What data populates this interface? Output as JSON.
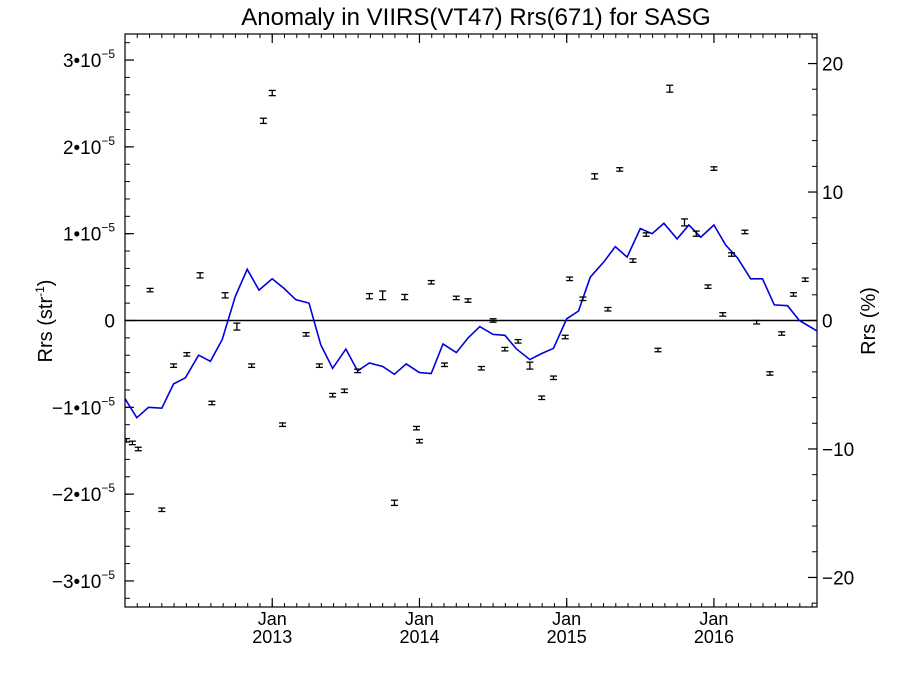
{
  "chart_data": {
    "type": "scatter",
    "title": "Anomaly in VIIRS(VT47) Rrs(671) for SASG",
    "ylabel_left": {
      "base": "Rrs (str",
      "sup": "-1",
      "close": ")"
    },
    "ylabel_right": "Rrs (%)",
    "xlim": [
      2012.0,
      2016.7
    ],
    "ylim_left": [
      -3.3e-05,
      3.3e-05
    ],
    "ylim_right": [
      -22.3,
      22.3
    ],
    "left_ticks": [
      {
        "value": -3e-05,
        "mantissa": "−3",
        "exp": "−5"
      },
      {
        "value": -2e-05,
        "mantissa": "−2",
        "exp": "−5"
      },
      {
        "value": -1e-05,
        "mantissa": "−1",
        "exp": "−5"
      },
      {
        "value": 0,
        "mantissa": "0",
        "exp": ""
      },
      {
        "value": 1e-05,
        "mantissa": "1",
        "exp": "−5"
      },
      {
        "value": 2e-05,
        "mantissa": "2",
        "exp": "−5"
      },
      {
        "value": 3e-05,
        "mantissa": "3",
        "exp": "−5"
      }
    ],
    "right_ticks": [
      {
        "value": -20,
        "label": "−20"
      },
      {
        "value": -10,
        "label": "−10"
      },
      {
        "value": 0,
        "label": "0"
      },
      {
        "value": 10,
        "label": "10"
      },
      {
        "value": 20,
        "label": "20"
      }
    ],
    "x_ticks": [
      {
        "value": 2013.0,
        "month": "Jan",
        "year": "2013"
      },
      {
        "value": 2014.0,
        "month": "Jan",
        "year": "2014"
      },
      {
        "value": 2015.0,
        "month": "Jan",
        "year": "2015"
      },
      {
        "value": 2016.0,
        "month": "Jan",
        "year": "2016"
      }
    ],
    "zero_line": 0,
    "series": [
      {
        "kind": "errorbar",
        "color": "#000000",
        "axis": "left",
        "x": [
          2012.01,
          2012.05,
          2012.09,
          2012.17,
          2012.25,
          2012.33,
          2012.42,
          2012.51,
          2012.59,
          2012.68,
          2012.76,
          2012.86,
          2012.94,
          2013.0,
          2013.07,
          2013.23,
          2013.32,
          2013.41,
          2013.49,
          2013.58,
          2013.66,
          2013.75,
          2013.83,
          2013.9,
          2013.98,
          2014.0,
          2014.08,
          2014.17,
          2014.25,
          2014.33,
          2014.42,
          2014.5,
          2014.58,
          2014.67,
          2014.75,
          2014.83,
          2014.91,
          2014.99,
          2015.02,
          2015.11,
          2015.19,
          2015.28,
          2015.36,
          2015.45,
          2015.54,
          2015.62,
          2015.7,
          2015.8,
          2015.88,
          2015.96,
          2016.0,
          2016.06,
          2016.12,
          2016.21,
          2016.29,
          2016.38,
          2016.46,
          2016.54,
          2016.62
        ],
        "y": [
          -1.38e-05,
          -1.41e-05,
          -1.48e-05,
          3.5e-06,
          -2.18e-05,
          -5.2e-06,
          -3.9e-06,
          5.2e-06,
          -9.5e-06,
          2.9e-06,
          -7e-07,
          -5.2e-06,
          2.3e-05,
          2.62e-05,
          -1.2e-05,
          -1.6e-06,
          -5.2e-06,
          -8.6e-06,
          -8.1e-06,
          -5.8e-06,
          2.8e-06,
          2.9e-06,
          -2.1e-05,
          2.7e-06,
          -1.24e-05,
          -1.39e-05,
          4.4e-06,
          -5.1e-06,
          2.6e-06,
          2.3e-06,
          -5.5e-06,
          0.0,
          -3.3e-06,
          -2.4e-06,
          -5.2e-06,
          -8.9e-06,
          -6.6e-06,
          -1.9e-06,
          4.8e-06,
          2.5e-06,
          1.66e-05,
          1.3e-06,
          1.74e-05,
          6.9e-06,
          9.9e-06,
          -3.4e-06,
          2.67e-05,
          1.13e-05,
          1e-05,
          3.9e-06,
          1.75e-05,
          7e-07,
          7.6e-06,
          1.02e-05,
          -2e-07,
          -6.1e-06,
          -1.5e-06,
          3e-06,
          4.7e-06
        ],
        "err": [
          2e-07,
          2e-07,
          2e-07,
          2e-07,
          2e-07,
          2e-07,
          2e-07,
          3e-07,
          2e-07,
          3e-07,
          4e-07,
          2e-07,
          3e-07,
          3e-07,
          2e-07,
          2e-07,
          2e-07,
          2e-07,
          2e-07,
          2e-07,
          3e-07,
          5e-07,
          3e-07,
          3e-07,
          2e-07,
          2e-07,
          2e-07,
          2e-07,
          2e-07,
          2e-07,
          2e-07,
          2e-07,
          2e-07,
          2e-07,
          4e-07,
          2e-07,
          2e-07,
          2e-07,
          2e-07,
          2e-07,
          3e-07,
          2e-07,
          2e-07,
          2e-07,
          2e-07,
          2e-07,
          4e-07,
          4e-07,
          3e-07,
          2e-07,
          2e-07,
          2e-07,
          2e-07,
          2e-07,
          2e-07,
          2e-07,
          2e-07,
          2e-07,
          2e-07
        ]
      },
      {
        "kind": "line",
        "color": "#0000dd",
        "axis": "left",
        "x": [
          2012.0,
          2012.08,
          2012.16,
          2012.25,
          2012.33,
          2012.41,
          2012.5,
          2012.58,
          2012.66,
          2012.75,
          2012.83,
          2012.91,
          2013.0,
          2013.08,
          2013.16,
          2013.25,
          2013.33,
          2013.41,
          2013.5,
          2013.58,
          2013.66,
          2013.75,
          2013.83,
          2013.91,
          2014.0,
          2014.08,
          2014.16,
          2014.25,
          2014.33,
          2014.41,
          2014.5,
          2014.58,
          2014.66,
          2014.75,
          2014.83,
          2014.91,
          2015.0,
          2015.08,
          2015.16,
          2015.25,
          2015.33,
          2015.41,
          2015.5,
          2015.58,
          2015.66,
          2015.75,
          2015.83,
          2015.91,
          2016.0,
          2016.08,
          2016.16,
          2016.25,
          2016.33,
          2016.41,
          2016.5,
          2016.58,
          2016.7
        ],
        "y": [
          -9e-06,
          -1.12e-05,
          -1e-05,
          -1.01e-05,
          -7.3e-06,
          -6.6e-06,
          -4e-06,
          -4.7e-06,
          -2.2e-06,
          2.8e-06,
          5.9e-06,
          3.5e-06,
          4.8e-06,
          3.7e-06,
          2.4e-06,
          2e-06,
          -2.8e-06,
          -5.5e-06,
          -3.3e-06,
          -5.8e-06,
          -4.9e-06,
          -5.3e-06,
          -6.2e-06,
          -5e-06,
          -6e-06,
          -6.1e-06,
          -2.7e-06,
          -3.7e-06,
          -2e-06,
          -7e-07,
          -1.6e-06,
          -1.7e-06,
          -3.3e-06,
          -4.5e-06,
          -3.8e-06,
          -3.2e-06,
          2e-07,
          1.1e-06,
          5e-06,
          6.7e-06,
          8.5e-06,
          7.3e-06,
          1.06e-05,
          1e-05,
          1.12e-05,
          9.4e-06,
          1.1e-05,
          9.6e-06,
          1.1e-05,
          8.7e-06,
          7.2e-06,
          4.8e-06,
          4.8e-06,
          1.8e-06,
          1.7e-06,
          0.0,
          -1.2e-06
        ]
      }
    ]
  }
}
